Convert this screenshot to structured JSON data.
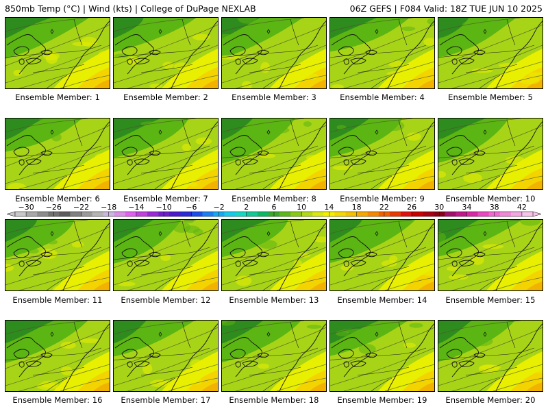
{
  "header": {
    "left": "850mb Temp (°C) | Wind (kts) | College of DuPage NEXLAB",
    "right": "06Z GEFS | F084 Valid: 18Z TUE JUN 10 2025"
  },
  "colors": {
    "dark_green": "#2e8b1e",
    "green": "#5bb512",
    "yellow_green": "#a8d417",
    "yellow": "#e8ef00",
    "gold": "#f4d400",
    "orange": "#f2b300"
  },
  "colorbar": {
    "tick_labels": [
      "-30",
      "-26",
      "-22",
      "-18",
      "-14",
      "-10",
      "-6",
      "-2",
      "2",
      "6",
      "10",
      "14",
      "18",
      "22",
      "26",
      "30",
      "34",
      "38",
      "42"
    ],
    "colors": [
      "#c8c8c8",
      "#a8a8a8",
      "#8c8c8c",
      "#727272",
      "#5c5c5c",
      "#808080",
      "#9a9a9a",
      "#b4b4b4",
      "#c9b7dc",
      "#d98fe8",
      "#e060f0",
      "#c040e0",
      "#9a28d6",
      "#6f1fc9",
      "#4b1aca",
      "#2b2bd8",
      "#1c4ee8",
      "#1c7ef0",
      "#17a8f0",
      "#16cbe8",
      "#14d8c4",
      "#11c896",
      "#0db864",
      "#3aa82a",
      "#5fb71a",
      "#89c915",
      "#b3d914",
      "#dbe810",
      "#f5f000",
      "#f5d800",
      "#f5c000",
      "#f5a800",
      "#f58800",
      "#f06000",
      "#e83a00",
      "#e01010",
      "#c80000",
      "#a80010",
      "#880018",
      "#a0106a",
      "#c0188a",
      "#d828a8",
      "#e848c0",
      "#f068d0",
      "#f088d8",
      "#f4a8e0",
      "#f6c4e8"
    ]
  },
  "members": [
    {
      "label": "Ensemble Member: 1"
    },
    {
      "label": "Ensemble Member: 2"
    },
    {
      "label": "Ensemble Member: 3"
    },
    {
      "label": "Ensemble Member: 4"
    },
    {
      "label": "Ensemble Member: 5"
    },
    {
      "label": "Ensemble Member: 6"
    },
    {
      "label": "Ensemble Member: 7"
    },
    {
      "label": "Ensemble Member: 8"
    },
    {
      "label": "Ensemble Member: 9"
    },
    {
      "label": "Ensemble Member: 10"
    },
    {
      "label": "Ensemble Member: 11"
    },
    {
      "label": "Ensemble Member: 12"
    },
    {
      "label": "Ensemble Member: 13"
    },
    {
      "label": "Ensemble Member: 14"
    },
    {
      "label": "Ensemble Member: 15"
    },
    {
      "label": "Ensemble Member: 16"
    },
    {
      "label": "Ensemble Member: 17"
    },
    {
      "label": "Ensemble Member: 18"
    },
    {
      "label": "Ensemble Member: 19"
    },
    {
      "label": "Ensemble Member: 20"
    }
  ]
}
